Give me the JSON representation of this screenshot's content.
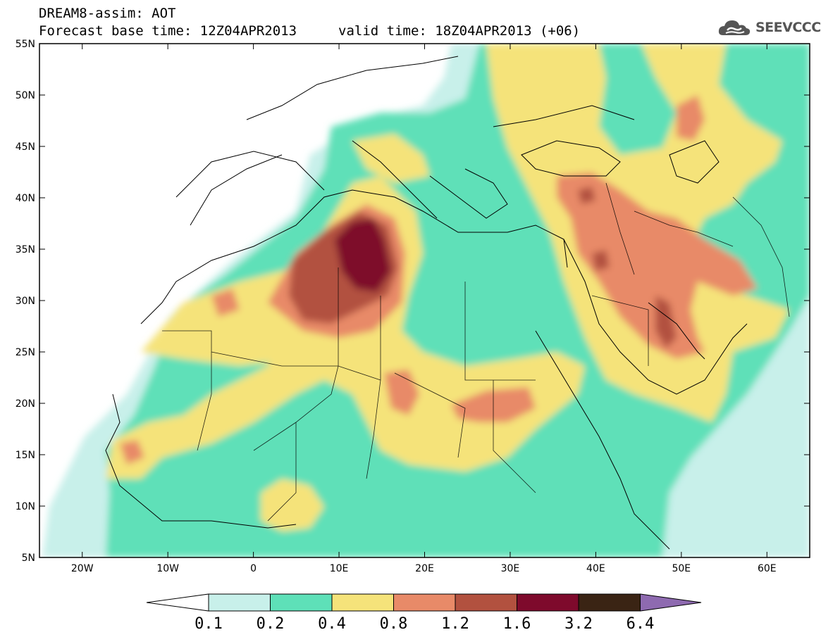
{
  "header": {
    "title": "DREAM8-assim: AOT",
    "base_time": "Forecast base time: 12Z04APR2013",
    "valid_time": "valid time: 18Z04APR2013 (+06)"
  },
  "logo": {
    "text": "SEEVCCC",
    "icon": "cloud-icon"
  },
  "map": {
    "projection": "lat-lon",
    "lon_range": [
      -25,
      65
    ],
    "lat_range": [
      5,
      55
    ],
    "lat_labels": [
      "5N",
      "10N",
      "15N",
      "20N",
      "25N",
      "30N",
      "35N",
      "40N",
      "45N",
      "50N",
      "55N"
    ],
    "lon_labels": [
      "20W",
      "10W",
      "0",
      "10E",
      "20E",
      "30E",
      "40E",
      "50E",
      "60E"
    ],
    "field": "Aerosol Optical Thickness (AOT)"
  },
  "colorbar": {
    "levels": [
      "0.1",
      "0.2",
      "0.4",
      "0.8",
      "1.2",
      "1.6",
      "3.2",
      "6.4"
    ],
    "colors": [
      "#c8f0ea",
      "#5ee0b8",
      "#f5e37a",
      "#e88a68",
      "#b2513f",
      "#7e0a2c",
      "#3a2414",
      "#8e6ab0"
    ],
    "under_color": "#ffffff"
  }
}
